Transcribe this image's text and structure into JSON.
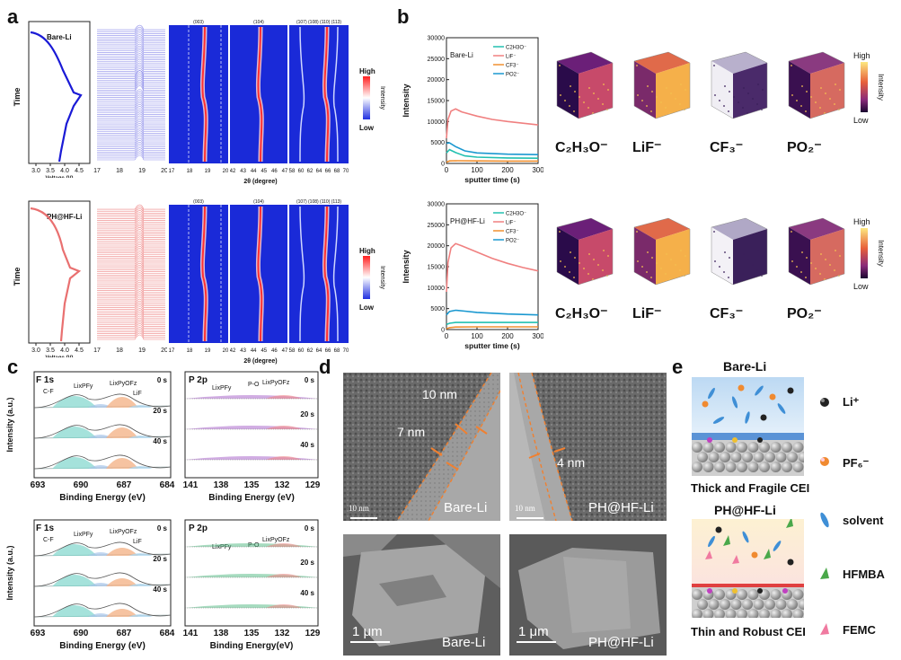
{
  "panels": {
    "a": "a",
    "b": "b",
    "c": "c",
    "d": "d",
    "e": "e"
  },
  "panel_a": {
    "rows": [
      {
        "sample": "Bare-Li",
        "color": "#1a1ad6",
        "heat": "blue-red"
      },
      {
        "sample": "PH@HF-Li",
        "color": "#e97070",
        "heat": "blue-red"
      }
    ],
    "time_label": "Time",
    "voltage_label": "Voltage (V)",
    "voltage_ticks": [
      "3.0",
      "3.5",
      "4.0",
      "4.5"
    ],
    "xrd_ticks": [
      "17",
      "18",
      "19",
      "20"
    ],
    "map1_ticks": [
      "17",
      "18",
      "19",
      "20"
    ],
    "map2_ticks": [
      "42",
      "43",
      "44",
      "45",
      "46",
      "47"
    ],
    "map3_ticks": [
      "58",
      "60",
      "62",
      "64",
      "66",
      "68",
      "70"
    ],
    "two_theta_label": "2θ (degree)",
    "peaks": {
      "p003": "(003)",
      "p104": "(104)",
      "p107": "(107)",
      "p108_110_113": "(108) (110) (113)"
    },
    "scale": {
      "high": "High",
      "low": "Low",
      "title": "Intensity"
    }
  },
  "panel_b": {
    "ylabel": "Intensity",
    "xlabel": "sputter time (s)",
    "xticks": [
      "0",
      "100",
      "200",
      "300"
    ],
    "yticks": [
      "0",
      "5000",
      "10000",
      "15000",
      "20000",
      "25000",
      "30000"
    ],
    "legend": [
      "C2H3O⁻",
      "LiF⁻",
      "CF3⁻",
      "PO2⁻"
    ],
    "samples": [
      "Bare-Li",
      "PH@HF-Li"
    ],
    "ions": [
      "C₂H₃O⁻",
      "LiF⁻",
      "CF₃⁻",
      "PO₂⁻"
    ],
    "scale": {
      "high": "High",
      "low": "Low",
      "title": "Intensity"
    }
  },
  "chart_data": [
    {
      "type": "line",
      "title": "Bare-Li",
      "xlabel": "sputter time (s)",
      "ylabel": "Intensity",
      "xlim": [
        0,
        300
      ],
      "ylim": [
        0,
        30000
      ],
      "series": [
        {
          "name": "LiF⁻",
          "color": "#f08080",
          "x": [
            0,
            5,
            15,
            30,
            50,
            100,
            150,
            200,
            250,
            300
          ],
          "values": [
            6000,
            10500,
            12500,
            13000,
            12300,
            11300,
            10500,
            10000,
            9600,
            9200
          ]
        },
        {
          "name": "PO2⁻",
          "color": "#1a98d0",
          "x": [
            0,
            10,
            30,
            60,
            100,
            200,
            300
          ],
          "values": [
            4800,
            4900,
            4000,
            3000,
            2500,
            2200,
            2100
          ]
        },
        {
          "name": "C2H3O⁻",
          "color": "#22c0b0",
          "x": [
            0,
            10,
            30,
            60,
            100,
            200,
            300
          ],
          "values": [
            2500,
            3300,
            2600,
            1800,
            1500,
            1300,
            1250
          ]
        },
        {
          "name": "CF3⁻",
          "color": "#f09030",
          "x": [
            0,
            10,
            30,
            100,
            200,
            300
          ],
          "values": [
            300,
            600,
            650,
            600,
            550,
            550
          ]
        }
      ]
    },
    {
      "type": "line",
      "title": "PH@HF-Li",
      "xlabel": "sputter time (s)",
      "ylabel": "Intensity",
      "xlim": [
        0,
        300
      ],
      "ylim": [
        0,
        30000
      ],
      "series": [
        {
          "name": "LiF⁻",
          "color": "#f08080",
          "x": [
            0,
            5,
            15,
            30,
            50,
            100,
            150,
            200,
            250,
            300
          ],
          "values": [
            9000,
            16000,
            19500,
            20500,
            20000,
            18500,
            17000,
            15800,
            14800,
            14000
          ]
        },
        {
          "name": "PO2⁻",
          "color": "#1a98d0",
          "x": [
            0,
            10,
            30,
            60,
            100,
            200,
            300
          ],
          "values": [
            3500,
            4300,
            4600,
            4400,
            4100,
            3700,
            3500
          ]
        },
        {
          "name": "C2H3O⁻",
          "color": "#22c0b0",
          "x": [
            0,
            10,
            30,
            60,
            100,
            200,
            300
          ],
          "values": [
            1200,
            1500,
            1700,
            1700,
            1700,
            1700,
            1700
          ]
        },
        {
          "name": "CF3⁻",
          "color": "#f09030",
          "x": [
            0,
            10,
            30,
            100,
            200,
            300
          ],
          "values": [
            200,
            450,
            600,
            650,
            650,
            650
          ]
        }
      ]
    }
  ],
  "panel_c": {
    "ylabel": "Intensity (a.u.)",
    "f1s": {
      "title": "F 1s",
      "xlabel": "Binding Energy (eV)",
      "ticks": [
        "693",
        "690",
        "687",
        "684"
      ],
      "labels": {
        "cf": "C-F",
        "lipf": "LixPFy",
        "lipo": "LixPyOFz",
        "lif": "LiF"
      }
    },
    "p2p": {
      "title": "P 2p",
      "xlabel_top": "Binding Energy (eV)",
      "xlabel_bottom": "Binding Energy(eV)",
      "ticks": [
        "141",
        "138",
        "135",
        "132",
        "129"
      ],
      "labels": {
        "lipf": "LixPFy",
        "po": "P-O",
        "lipo": "LixPyOFz"
      }
    },
    "times": [
      "0 s",
      "20 s",
      "40 s"
    ]
  },
  "panel_d": {
    "tem": [
      {
        "sample": "Bare-Li",
        "thick1": "10 nm",
        "thick2": "7 nm",
        "scale": "10 nm"
      },
      {
        "sample": "PH@HF-Li",
        "thick1": "4 nm",
        "scale": "10 nm"
      }
    ],
    "sem": [
      {
        "sample": "Bare-Li",
        "scale": "1 μm"
      },
      {
        "sample": "PH@HF-Li",
        "scale": "1 μm"
      }
    ]
  },
  "panel_e": {
    "top_title": "Bare-Li",
    "top_caption": "Thick and Fragile CEI",
    "bottom_title": "PH@HF-Li",
    "bottom_caption": "Thin and Robust CEI",
    "legend": [
      {
        "label": "Li⁺",
        "icon": "li-ion-icon"
      },
      {
        "label": "PF₆⁻",
        "icon": "pf6-icon"
      },
      {
        "label": "solvent",
        "icon": "solvent-icon"
      },
      {
        "label": "HFMBA",
        "icon": "hfmba-icon"
      },
      {
        "label": "FEMC",
        "icon": "femc-icon"
      }
    ]
  }
}
